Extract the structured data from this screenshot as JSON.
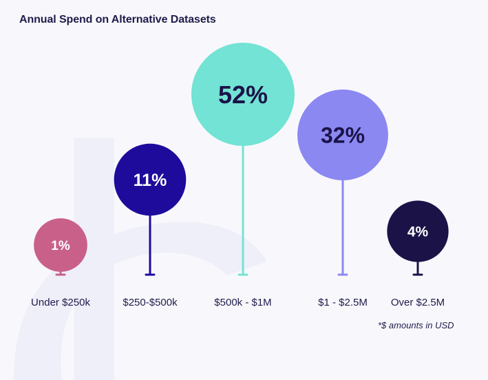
{
  "chart_data": {
    "type": "bubble",
    "title": "Annual Spend on Alternative Datasets",
    "categories": [
      "Under $250k",
      "$250-$500k",
      "$500k - $1M",
      "$1 - $2.5M",
      "Over $2.5M"
    ],
    "values": [
      1,
      11,
      52,
      32,
      4
    ],
    "value_labels": [
      "1%",
      "11%",
      "52%",
      "32%",
      "4%"
    ],
    "colors": [
      "#c9608a",
      "#1e0b9c",
      "#72e3d4",
      "#8b88f2",
      "#1b1347"
    ],
    "label_colors": [
      "#ffffff",
      "#ffffff",
      "#1b1347",
      "#1b1347",
      "#ffffff"
    ],
    "unit": "%",
    "footnote": "*$ amounts in USD"
  }
}
